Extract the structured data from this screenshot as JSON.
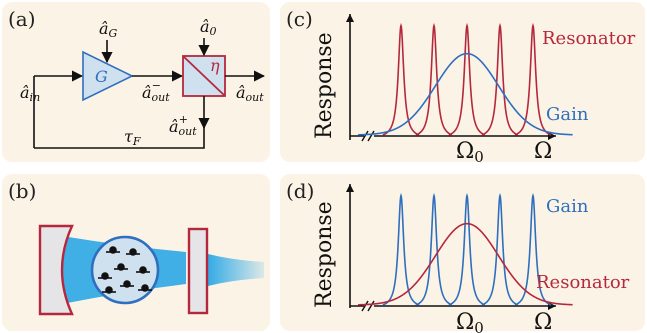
{
  "panels": {
    "a": {
      "label": "(a)",
      "gain_symbol": "G",
      "beamsplitter_symbol": "η",
      "a_G": "â",
      "a_G_sub": "G",
      "a_0": "â",
      "a_0_sub": "0",
      "a_in": "â",
      "a_in_sub": "in",
      "a_out_minus": "â",
      "a_out_minus_sub": "out",
      "a_out_minus_sup": "−",
      "a_out": "â",
      "a_out_sub": "out",
      "a_out_plus": "â",
      "a_out_plus_sub": "out",
      "a_out_plus_sup": "+",
      "tau": "τ",
      "tau_sub": "F"
    },
    "b": {
      "label": "(b)"
    },
    "c": {
      "label": "(c)",
      "ylabel": "Response",
      "xtick_center": "Ω",
      "xtick_center_sub": "0",
      "xtick_end": "Ω",
      "comb_label": "Resonator",
      "envelope_label": "Gain"
    },
    "d": {
      "label": "(d)",
      "ylabel": "Response",
      "xtick_center": "Ω",
      "xtick_center_sub": "0",
      "xtick_end": "Ω",
      "comb_label": "Gain",
      "envelope_label": "Resonator"
    }
  },
  "colors": {
    "red": "#b5283c",
    "blue": "#2e6fbf",
    "panel_bg": "#fbf3e6",
    "block_fill": "#cfe0ef",
    "beam": "#2aa7e6"
  },
  "chart_data": [
    {
      "panel": "c",
      "type": "line",
      "xlabel": "Ω",
      "ylabel": "Response",
      "series": [
        {
          "name": "Resonator",
          "shape": "comb",
          "peak_positions": [
            -2,
            -1,
            0,
            1,
            2
          ],
          "peak_height": 1.0,
          "peak_width": 0.1
        },
        {
          "name": "Gain",
          "shape": "gaussian",
          "center": 0,
          "height": 0.72,
          "sigma": 1.0
        }
      ],
      "xticks": [
        "Ω0",
        "Ω"
      ]
    },
    {
      "panel": "d",
      "type": "line",
      "xlabel": "Ω",
      "ylabel": "Response",
      "series": [
        {
          "name": "Gain",
          "shape": "comb",
          "peak_positions": [
            -2,
            -1,
            0,
            1,
            2
          ],
          "peak_height": 1.0,
          "peak_width": 0.1
        },
        {
          "name": "Resonator",
          "shape": "gaussian",
          "center": 0,
          "height": 0.72,
          "sigma": 1.0
        }
      ],
      "xticks": [
        "Ω0",
        "Ω"
      ]
    }
  ]
}
